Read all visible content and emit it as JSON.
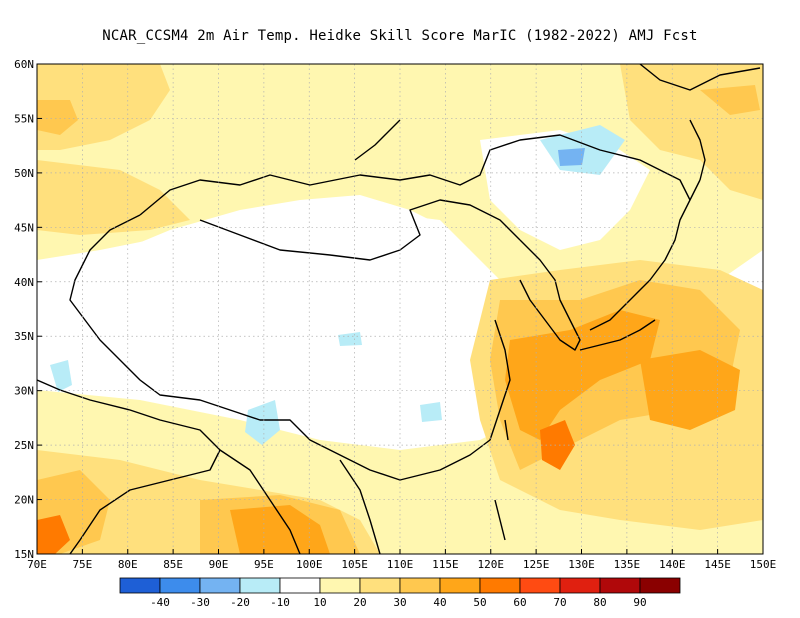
{
  "title": "NCAR_CCSM4  2m Air Temp. Heidke Skill Score MarIC (1982-2022) AMJ Fcst",
  "colors": {
    "land_border": "#000000",
    "grid": "#b0b0b0",
    "frame": "#000000"
  },
  "axes": {
    "lon_labels": [
      "70E",
      "75E",
      "80E",
      "85E",
      "90E",
      "95E",
      "100E",
      "105E",
      "110E",
      "115E",
      "120E",
      "125E",
      "130E",
      "135E",
      "140E",
      "145E",
      "150E"
    ],
    "lat_labels": [
      "15N",
      "20N",
      "25N",
      "30N",
      "35N",
      "40N",
      "45N",
      "50N",
      "55N",
      "60N"
    ],
    "lon_range": [
      70,
      150
    ],
    "lat_range": [
      15,
      60
    ]
  },
  "colorbar": {
    "colors": [
      "#1e5fd6",
      "#3d8cec",
      "#74b3f2",
      "#b8ecf7",
      "#ffffff",
      "#fff7b0",
      "#ffe07d",
      "#ffc84f",
      "#ffa619",
      "#ff7a00",
      "#ff4b12",
      "#e02010",
      "#b0080a",
      "#8a0000"
    ],
    "labels": [
      "-40",
      "-30",
      "-20",
      "-10",
      "10",
      "20",
      "30",
      "40",
      "50",
      "60",
      "70",
      "80",
      "90"
    ]
  },
  "icons": {
    "coastline": "coastline-icon"
  }
}
